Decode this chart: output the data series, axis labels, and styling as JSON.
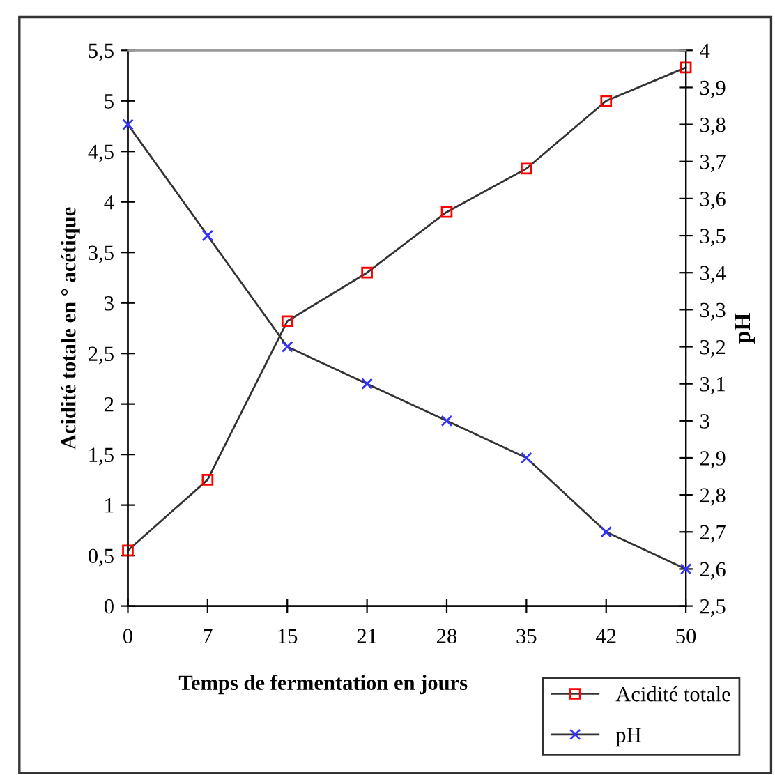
{
  "chart_data": {
    "type": "line",
    "xlabel": "Temps de fermentation en jours",
    "ylabel": "Acidité totale en ° acétique",
    "y2label": "pH",
    "categories": [
      "0",
      "7",
      "15",
      "21",
      "28",
      "35",
      "42",
      "50"
    ],
    "series": [
      {
        "name": "Acidité totale",
        "color": "#ff0000",
        "marker": "square",
        "values": [
          0.55,
          1.25,
          2.82,
          3.3,
          3.9,
          4.33,
          5.0,
          5.33
        ]
      },
      {
        "name": "pH",
        "color": "#3333ff",
        "marker": "cross",
        "axis": "y2",
        "values": [
          3.8,
          3.5,
          3.2,
          3.1,
          3.0,
          2.9,
          2.7,
          2.6
        ]
      }
    ],
    "ylim": [
      0,
      5.5
    ],
    "yticks": [
      0,
      {
        "value": 0.5,
        "label": "0,5"
      },
      1,
      {
        "value": 1.5,
        "label": "1,5"
      },
      2,
      {
        "value": 2.5,
        "label": "2,5"
      },
      3,
      {
        "value": 3.5,
        "label": "3,5"
      },
      4,
      {
        "value": 4.5,
        "label": "4,5"
      },
      5,
      {
        "value": 5.5,
        "label": "5,5"
      }
    ],
    "y2lim": [
      2.5,
      4
    ],
    "y2ticks": [
      {
        "value": 2.5,
        "label": "2,5"
      },
      {
        "value": 2.6,
        "label": "2,6"
      },
      {
        "value": 2.7,
        "label": "2,7"
      },
      {
        "value": 2.8,
        "label": "2,8"
      },
      {
        "value": 2.9,
        "label": "2,9"
      },
      3,
      {
        "value": 3.1,
        "label": "3,1"
      },
      {
        "value": 3.2,
        "label": "3,2"
      },
      {
        "value": 3.3,
        "label": "3,3"
      },
      {
        "value": 3.4,
        "label": "3,4"
      },
      {
        "value": 3.5,
        "label": "3,5"
      },
      {
        "value": 3.6,
        "label": "3,6"
      },
      {
        "value": 3.7,
        "label": "3,7"
      },
      {
        "value": 3.8,
        "label": "3,8"
      },
      {
        "value": 3.9,
        "label": "3,9"
      },
      4
    ],
    "legend": "bottom right",
    "grid": false,
    "line_style": "solid"
  }
}
